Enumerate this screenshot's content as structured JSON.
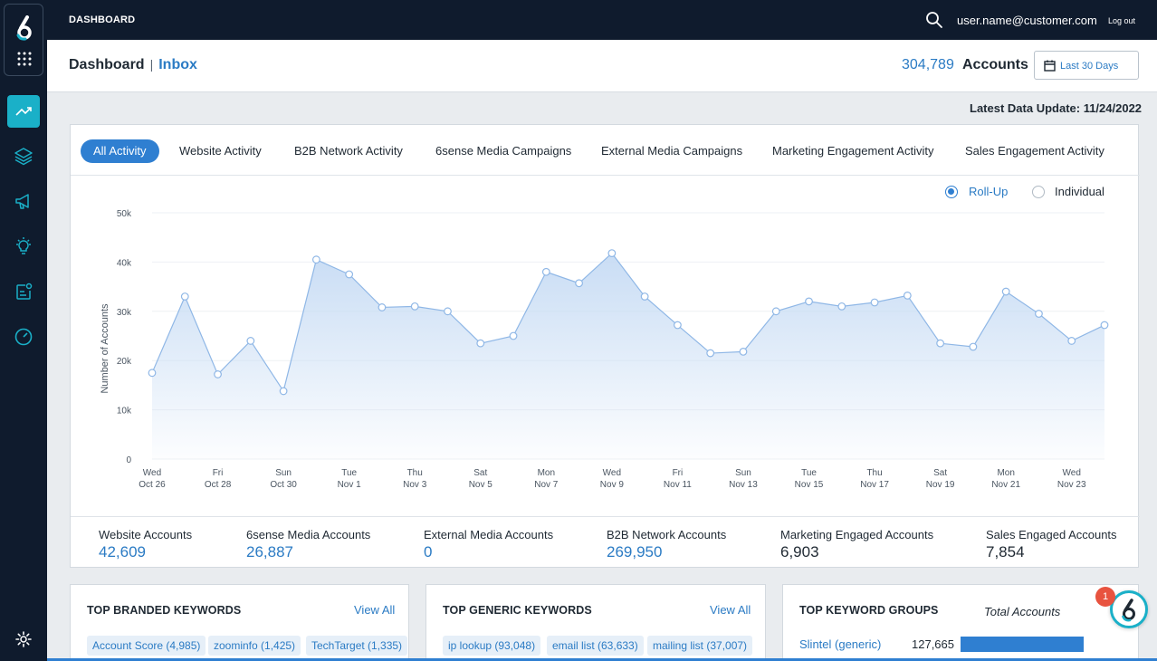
{
  "topbar": {
    "title": "DASHBOARD",
    "user": "user.name@customer.com",
    "logout": "Log out"
  },
  "header": {
    "crumb_main": "Dashboard",
    "crumb_sep": "|",
    "crumb_sub": "Inbox",
    "accounts_count": "304,789",
    "accounts_label": "Accounts",
    "date_range": "Last 30 Days"
  },
  "latest_update": "Latest Data Update: 11/24/2022",
  "tabs": [
    "All Activity",
    "Website Activity",
    "B2B Network Activity",
    "6sense Media Campaigns",
    "External Media Campaigns",
    "Marketing Engagement Activity",
    "Sales Engagement Activity"
  ],
  "view_mode": {
    "rollup": "Roll-Up",
    "individual": "Individual",
    "selected": "Roll-Up"
  },
  "chart_data": {
    "type": "area",
    "ylabel": "Number of Accounts",
    "ylim": [
      0,
      50000
    ],
    "yticks": [
      0,
      10000,
      20000,
      30000,
      40000,
      50000
    ],
    "ytick_labels": [
      "0",
      "10k",
      "20k",
      "30k",
      "40k",
      "50k"
    ],
    "xtick_labels": [
      [
        "Wed",
        "Oct 26"
      ],
      [
        "Fri",
        "Oct 28"
      ],
      [
        "Sun",
        "Oct 30"
      ],
      [
        "Tue",
        "Nov 1"
      ],
      [
        "Thu",
        "Nov 3"
      ],
      [
        "Sat",
        "Nov 5"
      ],
      [
        "Mon",
        "Nov 7"
      ],
      [
        "Wed",
        "Nov 9"
      ],
      [
        "Fri",
        "Nov 11"
      ],
      [
        "Sun",
        "Nov 13"
      ],
      [
        "Tue",
        "Nov 15"
      ],
      [
        "Thu",
        "Nov 17"
      ],
      [
        "Sat",
        "Nov 19"
      ],
      [
        "Mon",
        "Nov 21"
      ],
      [
        "Wed",
        "Nov 23"
      ]
    ],
    "x": [
      "2022-10-26",
      "2022-10-27",
      "2022-10-28",
      "2022-10-29",
      "2022-10-30",
      "2022-10-31",
      "2022-11-01",
      "2022-11-02",
      "2022-11-03",
      "2022-11-04",
      "2022-11-05",
      "2022-11-06",
      "2022-11-07",
      "2022-11-08",
      "2022-11-09",
      "2022-11-10",
      "2022-11-11",
      "2022-11-12",
      "2022-11-13",
      "2022-11-14",
      "2022-11-15",
      "2022-11-16",
      "2022-11-17",
      "2022-11-18",
      "2022-11-19",
      "2022-11-20",
      "2022-11-21",
      "2022-11-22",
      "2022-11-23",
      "2022-11-24"
    ],
    "values": [
      17500,
      33000,
      17200,
      24000,
      13800,
      40500,
      37500,
      30800,
      31000,
      30000,
      23500,
      25000,
      38000,
      35700,
      41800,
      33000,
      27200,
      21500,
      21800,
      30000,
      32000,
      31000,
      31800,
      33200,
      23500,
      22800,
      34000,
      29500,
      24000,
      27200
    ],
    "grid": true,
    "colors": {
      "line": "#8fb7e6",
      "fill": "#c6dbf4"
    }
  },
  "stats": [
    {
      "label": "Website Accounts",
      "value": "42,609",
      "style": "blue"
    },
    {
      "label": "6sense Media Accounts",
      "value": "26,887",
      "style": "blue"
    },
    {
      "label": "External Media Accounts",
      "value": "0",
      "style": "blue"
    },
    {
      "label": "B2B Network Accounts",
      "value": "269,950",
      "style": "blue"
    },
    {
      "label": "Marketing Engaged Accounts",
      "value": "6,903",
      "style": "dark"
    },
    {
      "label": "Sales Engaged Accounts",
      "value": "7,854",
      "style": "dark"
    }
  ],
  "branded": {
    "title": "TOP BRANDED KEYWORDS",
    "view_all": "View All",
    "chips": [
      "Account Score (4,985)",
      "zoominfo (1,425)",
      "TechTarget (1,335)"
    ]
  },
  "generic": {
    "title": "TOP GENERIC KEYWORDS",
    "view_all": "View All",
    "chips": [
      "ip lookup (93,048)",
      "email list (63,633)",
      "mailing list (37,007)"
    ]
  },
  "groups": {
    "title": "TOP KEYWORD GROUPS",
    "total_label": "Total Accounts",
    "rows": [
      {
        "name": "Slintel (generic)",
        "value": "127,665",
        "share": 1.0
      }
    ]
  },
  "help": {
    "badge": "1"
  },
  "colors": {
    "accent": "#2f7fd1",
    "teal": "#1ab0c8",
    "nav": "#0f1b2d"
  }
}
